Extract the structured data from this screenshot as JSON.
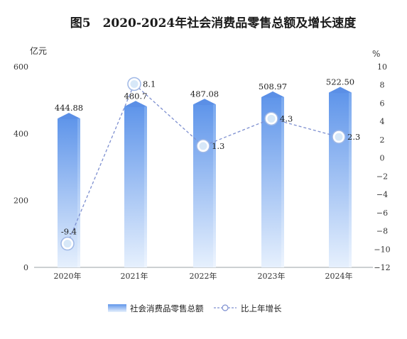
{
  "chart_data": {
    "type": "bar",
    "title": "图5　2020-2024年社会消费品零售总额及增长速度",
    "categories": [
      "2020年",
      "2021年",
      "2022年",
      "2023年",
      "2024年"
    ],
    "y_left": {
      "unit": "亿元",
      "range": [
        0,
        600
      ],
      "ticks": [
        "0",
        "200",
        "400",
        "600"
      ]
    },
    "y_right": {
      "unit": "%",
      "range": [
        -12,
        10
      ],
      "ticks": [
        "-12",
        "-10",
        "-8",
        "-6",
        "-4",
        "-2",
        "0",
        "2",
        "4",
        "6",
        "8",
        "10"
      ]
    },
    "series": [
      {
        "name": "社会消费品零售总额",
        "type": "bar",
        "axis": "left",
        "values": [
          444.88,
          480.7,
          487.08,
          508.97,
          522.5
        ],
        "labels": [
          "444.88",
          "480.7",
          "487.08",
          "508.97",
          "522.50"
        ]
      },
      {
        "name": "比上年增长",
        "type": "line",
        "axis": "right",
        "values": [
          -9.4,
          8.1,
          1.3,
          4.3,
          2.3
        ],
        "labels": [
          "-9.4",
          "8.1",
          "1.3",
          "4.3",
          "2.3"
        ]
      }
    ],
    "colors": {
      "bar_top": "#5f95ea",
      "bar_bottom": "#e6f0fd",
      "line": "#7d8fd0",
      "marker_fill": "#d7e8f8"
    },
    "grid": false,
    "legend": "bottom"
  }
}
